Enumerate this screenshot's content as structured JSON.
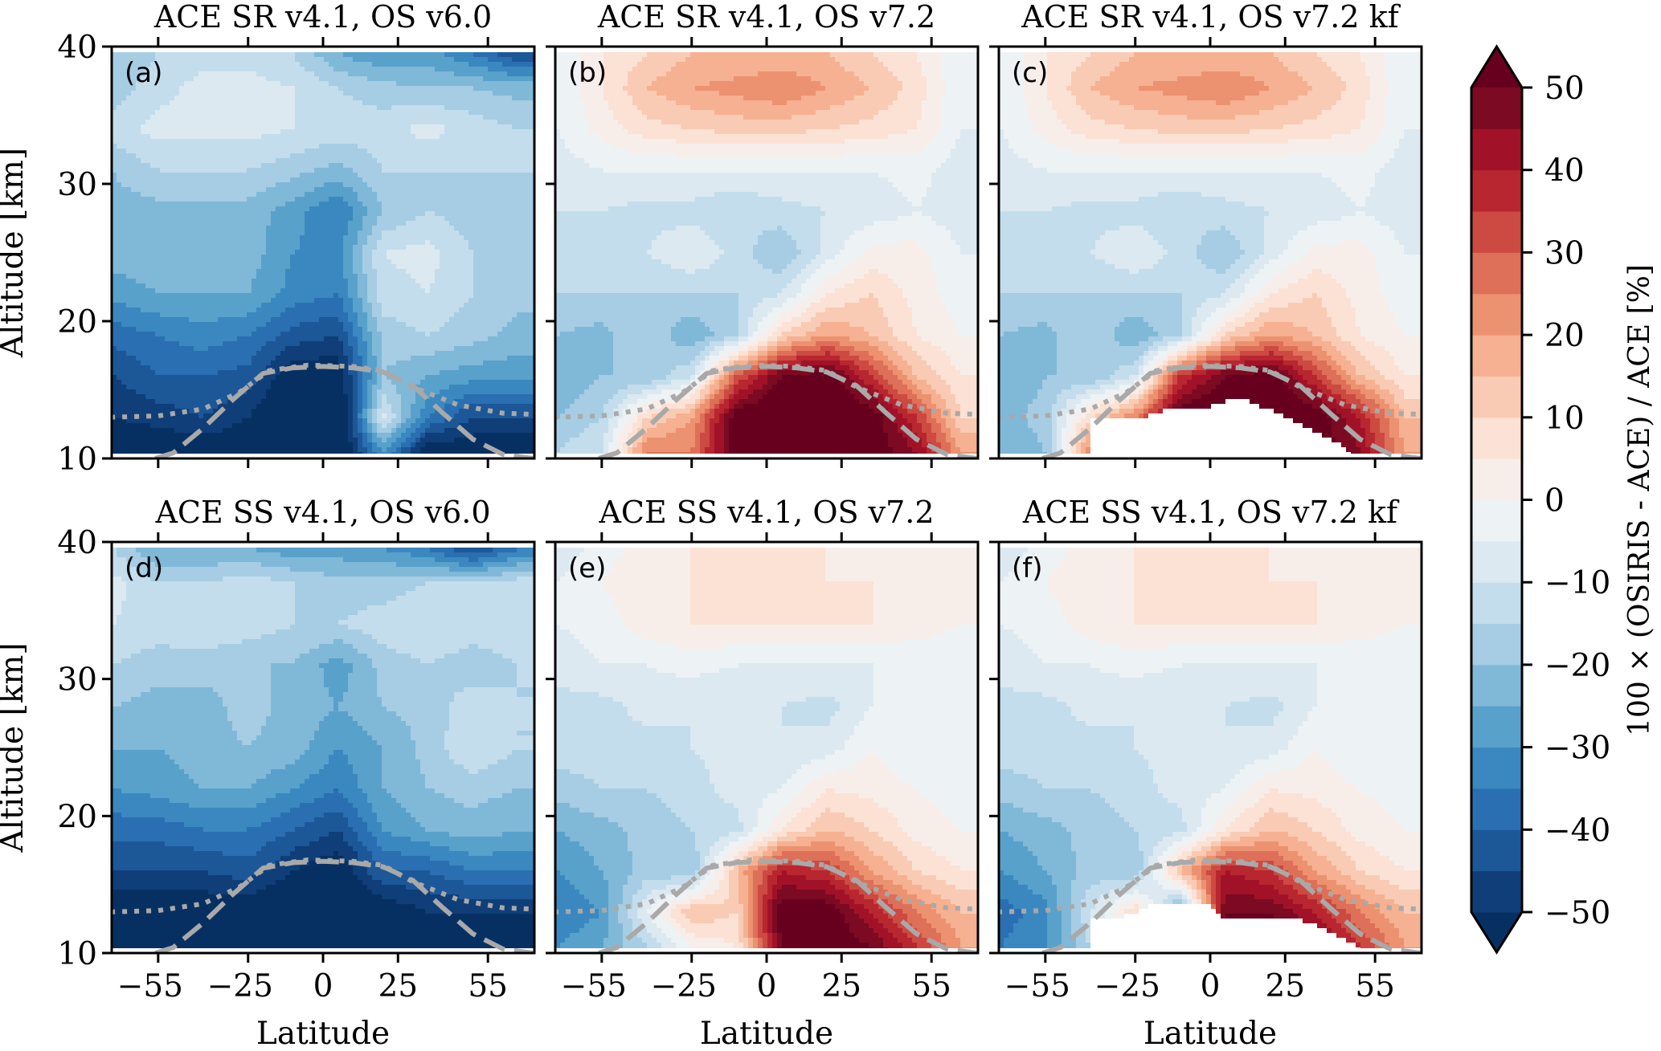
{
  "chart_data": {
    "type": "heatmap",
    "subtype": "filled-contour",
    "colorbar": {
      "label": "100 × (OSIRIS - ACE) / ACE [%]",
      "levels": [
        -50,
        -45,
        -40,
        -35,
        -30,
        -25,
        -20,
        -15,
        -10,
        -5,
        0,
        5,
        10,
        15,
        20,
        25,
        30,
        35,
        40,
        45,
        50
      ],
      "ticks": [
        "50",
        "40",
        "30",
        "20",
        "10",
        "0",
        "−10",
        "−20",
        "−30",
        "−40",
        "−50"
      ],
      "tick_values": [
        50,
        40,
        30,
        20,
        10,
        0,
        -10,
        -20,
        -30,
        -40,
        -50
      ],
      "extend": "both",
      "colors": [
        "#073062",
        "#0f3e78",
        "#1c5798",
        "#2a6fb1",
        "#3a88bf",
        "#58a1cb",
        "#80b8d8",
        "#a6cde3",
        "#c3ddec",
        "#dce9f1",
        "#edf2f5",
        "#f7eeea",
        "#fbe2d5",
        "#f9cbb4",
        "#f5b191",
        "#ec9270",
        "#de6f58",
        "#cc4a42",
        "#b8262f",
        "#a11228",
        "#7b0a22",
        "#67001f"
      ]
    },
    "xlabel": "Latitude",
    "ylabel": "Altitude [km]",
    "xlim": [
      -70.5,
      70.5
    ],
    "ylim": [
      10,
      40
    ],
    "data_range_alt": [
      10.4,
      39.6
    ],
    "xticks": [
      -55,
      -25,
      0,
      25,
      55
    ],
    "xtick_labels": [
      "−55",
      "−25",
      "0",
      "25",
      "55"
    ],
    "yticks": [
      10,
      20,
      30,
      40
    ],
    "ytick_labels": [
      "10",
      "20",
      "30",
      "40"
    ],
    "grid_lat": [
      -70,
      -55,
      -40,
      -25,
      -10,
      5,
      20,
      35,
      50,
      65
    ],
    "grid_alt": [
      10.5,
      13,
      16,
      19,
      22,
      25,
      28,
      31,
      34,
      37,
      39.5
    ],
    "lines": {
      "dotted": {
        "lat": [
          -71,
          -55,
          -40,
          -28,
          -18,
          -5,
          10,
          20,
          30,
          45,
          60,
          71
        ],
        "alt": [
          13,
          13.1,
          13.6,
          14.8,
          16.4,
          16.8,
          16.7,
          16.4,
          15.2,
          13.9,
          13.3,
          13.2
        ]
      },
      "dashed": {
        "lat": [
          -56,
          -50,
          -40,
          -30,
          -20,
          -10,
          0,
          10,
          20,
          30,
          40,
          50,
          60,
          70
        ],
        "alt": [
          10,
          10.4,
          12.2,
          14.3,
          16.2,
          16.6,
          16.7,
          16.6,
          16.3,
          15.3,
          13.3,
          11.4,
          10.3,
          10
        ]
      }
    },
    "panels": [
      {
        "label": "(a)",
        "title": "ACE SR v4.1, OS v6.0",
        "mask": null,
        "values": [
          [
            -55,
            -55,
            -55,
            -55,
            -60,
            -60,
            -30,
            -55,
            -55,
            -55
          ],
          [
            -50,
            -48,
            -45,
            -50,
            -60,
            -60,
            -8,
            -35,
            -45,
            -45
          ],
          [
            -45,
            -40,
            -40,
            -42,
            -55,
            -55,
            -20,
            -25,
            -28,
            -28
          ],
          [
            -38,
            -35,
            -32,
            -35,
            -42,
            -45,
            -18,
            -15,
            -18,
            -22
          ],
          [
            -28,
            -25,
            -25,
            -25,
            -32,
            -35,
            -12,
            -10,
            -15,
            -18
          ],
          [
            -22,
            -22,
            -20,
            -22,
            -30,
            -32,
            -10,
            -8,
            -15,
            -18
          ],
          [
            -22,
            -22,
            -22,
            -22,
            -28,
            -35,
            -20,
            -15,
            -18,
            -18
          ],
          [
            -20,
            -15,
            -15,
            -15,
            -18,
            -22,
            -15,
            -15,
            -15,
            -15
          ],
          [
            -12,
            -8,
            -8,
            -8,
            -10,
            -12,
            -12,
            -8,
            -12,
            -15
          ],
          [
            -18,
            -12,
            -8,
            -8,
            -10,
            -15,
            -18,
            -20,
            -20,
            -22
          ],
          [
            -20,
            -15,
            -12,
            -12,
            -15,
            -25,
            -30,
            -28,
            -35,
            -45
          ]
        ]
      },
      {
        "label": "(b)",
        "title": "ACE SR v4.1, OS v7.2",
        "mask": null,
        "values": [
          [
            -15,
            -10,
            25,
            25,
            55,
            60,
            60,
            55,
            45,
            20
          ],
          [
            -20,
            -15,
            10,
            20,
            55,
            60,
            60,
            55,
            35,
            10
          ],
          [
            -25,
            -20,
            -20,
            -10,
            30,
            50,
            55,
            35,
            15,
            5
          ],
          [
            -20,
            -22,
            -15,
            -25,
            -15,
            10,
            20,
            15,
            5,
            0
          ],
          [
            -15,
            -15,
            -15,
            -15,
            -15,
            -10,
            5,
            10,
            3,
            -3
          ],
          [
            -12,
            -12,
            -10,
            -5,
            -12,
            -20,
            -8,
            2,
            2,
            -5
          ],
          [
            -10,
            -10,
            -12,
            -12,
            -15,
            -12,
            -10,
            -8,
            -5,
            -8
          ],
          [
            -8,
            -5,
            -5,
            -5,
            -5,
            -5,
            -5,
            -5,
            -3,
            -8
          ],
          [
            -5,
            2,
            8,
            10,
            12,
            12,
            10,
            8,
            5,
            -5
          ],
          [
            -5,
            5,
            15,
            20,
            22,
            25,
            20,
            15,
            8,
            -5
          ],
          [
            -5,
            5,
            10,
            15,
            15,
            15,
            15,
            10,
            5,
            -5
          ]
        ]
      },
      {
        "label": "(c)",
        "title": "ACE SR v4.1, OS v7.2 kf",
        "mask": [
          [
            -40,
            10
          ],
          [
            -40,
            12.8
          ],
          [
            -25,
            12.8
          ],
          [
            -15,
            13.5
          ],
          [
            -5,
            13.5
          ],
          [
            10,
            14.5
          ],
          [
            25,
            13
          ],
          [
            40,
            11.5
          ],
          [
            50,
            10
          ]
        ],
        "values": [
          [
            -25,
            -20,
            25,
            25,
            55,
            60,
            60,
            55,
            45,
            20
          ],
          [
            -22,
            -18,
            10,
            25,
            55,
            60,
            60,
            55,
            40,
            15
          ],
          [
            -25,
            -20,
            -20,
            -10,
            35,
            50,
            55,
            35,
            15,
            5
          ],
          [
            -20,
            -22,
            -15,
            -25,
            -15,
            10,
            20,
            15,
            5,
            0
          ],
          [
            -15,
            -15,
            -15,
            -15,
            -15,
            -10,
            5,
            10,
            3,
            -3
          ],
          [
            -12,
            -12,
            -10,
            -5,
            -12,
            -20,
            -8,
            2,
            2,
            -5
          ],
          [
            -10,
            -10,
            -12,
            -12,
            -15,
            -12,
            -10,
            -8,
            -5,
            -8
          ],
          [
            -8,
            -5,
            -5,
            -5,
            -5,
            -5,
            -5,
            -5,
            -3,
            -8
          ],
          [
            -5,
            2,
            8,
            10,
            12,
            12,
            10,
            8,
            5,
            -5
          ],
          [
            -5,
            5,
            15,
            20,
            22,
            25,
            20,
            15,
            8,
            -5
          ],
          [
            -5,
            5,
            10,
            15,
            15,
            15,
            15,
            10,
            5,
            -5
          ]
        ]
      },
      {
        "label": "(d)",
        "title": "ACE SS v4.1, OS v6.0",
        "mask": null,
        "values": [
          [
            -60,
            -60,
            -60,
            -60,
            -60,
            -60,
            -60,
            -60,
            -60,
            -60
          ],
          [
            -55,
            -55,
            -55,
            -55,
            -60,
            -60,
            -55,
            -50,
            -50,
            -50
          ],
          [
            -45,
            -45,
            -45,
            -42,
            -50,
            -55,
            -40,
            -40,
            -35,
            -35
          ],
          [
            -38,
            -38,
            -35,
            -35,
            -40,
            -45,
            -30,
            -25,
            -22,
            -25
          ],
          [
            -30,
            -28,
            -25,
            -25,
            -30,
            -35,
            -25,
            -20,
            -18,
            -20
          ],
          [
            -25,
            -25,
            -22,
            -20,
            -22,
            -30,
            -25,
            -18,
            -10,
            -15
          ],
          [
            -20,
            -22,
            -22,
            -18,
            -22,
            -25,
            -20,
            -18,
            -12,
            -15
          ],
          [
            -15,
            -18,
            -18,
            -20,
            -20,
            -28,
            -18,
            -15,
            -18,
            -15
          ],
          [
            -10,
            -12,
            -10,
            -12,
            -15,
            -15,
            -12,
            -10,
            -12,
            -12
          ],
          [
            -8,
            -15,
            -15,
            -12,
            -15,
            -18,
            -18,
            -15,
            -15,
            -12
          ],
          [
            -15,
            -25,
            -25,
            -25,
            -28,
            -28,
            -30,
            -35,
            -45,
            -35
          ]
        ]
      },
      {
        "label": "(e)",
        "title": "ACE SS v4.1, OS v7.2",
        "mask": null,
        "values": [
          [
            -30,
            -25,
            -15,
            0,
            5,
            50,
            55,
            50,
            35,
            20
          ],
          [
            -35,
            -30,
            -5,
            15,
            10,
            55,
            55,
            40,
            25,
            15
          ],
          [
            -30,
            -25,
            -18,
            -20,
            15,
            40,
            35,
            20,
            10,
            5
          ],
          [
            -25,
            -22,
            -18,
            -15,
            -12,
            5,
            15,
            10,
            3,
            0
          ],
          [
            -18,
            -15,
            -15,
            -12,
            -8,
            -5,
            5,
            3,
            0,
            -3
          ],
          [
            -12,
            -12,
            -12,
            -10,
            -8,
            -10,
            -8,
            0,
            -5,
            -5
          ],
          [
            -12,
            -12,
            -8,
            -10,
            -10,
            -10,
            -12,
            -5,
            -3,
            -5
          ],
          [
            -8,
            -5,
            -5,
            -3,
            -5,
            -5,
            -5,
            -5,
            -5,
            -5
          ],
          [
            -5,
            -3,
            3,
            5,
            5,
            5,
            5,
            5,
            3,
            0
          ],
          [
            -5,
            0,
            5,
            5,
            8,
            10,
            5,
            5,
            3,
            3
          ],
          [
            -8,
            -3,
            3,
            5,
            5,
            8,
            5,
            3,
            3,
            2
          ]
        ]
      },
      {
        "label": "(f)",
        "title": "ACE SS v4.1, OS v7.2 kf",
        "mask": [
          [
            -40,
            10
          ],
          [
            -40,
            12.5
          ],
          [
            -30,
            12.5
          ],
          [
            -20,
            13.5
          ],
          [
            0,
            13.5
          ],
          [
            5,
            12.5
          ],
          [
            20,
            12.5
          ],
          [
            30,
            12.5
          ],
          [
            45,
            11
          ],
          [
            55,
            10
          ]
        ],
        "values": [
          [
            -35,
            -30,
            -15,
            0,
            5,
            50,
            55,
            50,
            35,
            20
          ],
          [
            -38,
            -32,
            -10,
            10,
            -30,
            50,
            50,
            40,
            25,
            15
          ],
          [
            -30,
            -25,
            -18,
            -20,
            15,
            40,
            35,
            20,
            10,
            5
          ],
          [
            -25,
            -22,
            -18,
            -15,
            -12,
            5,
            15,
            10,
            3,
            0
          ],
          [
            -18,
            -15,
            -15,
            -12,
            -8,
            -5,
            5,
            3,
            0,
            -3
          ],
          [
            -12,
            -12,
            -12,
            -10,
            -8,
            -10,
            -8,
            0,
            -5,
            -5
          ],
          [
            -12,
            -12,
            -8,
            -10,
            -10,
            -10,
            -12,
            -5,
            -3,
            -5
          ],
          [
            -8,
            -5,
            -5,
            -3,
            -5,
            -5,
            -5,
            -5,
            -5,
            -5
          ],
          [
            -5,
            -3,
            3,
            5,
            5,
            5,
            5,
            5,
            3,
            0
          ],
          [
            -5,
            0,
            5,
            5,
            8,
            10,
            5,
            5,
            3,
            3
          ],
          [
            -8,
            -3,
            3,
            5,
            5,
            8,
            5,
            3,
            3,
            2
          ]
        ]
      }
    ]
  }
}
